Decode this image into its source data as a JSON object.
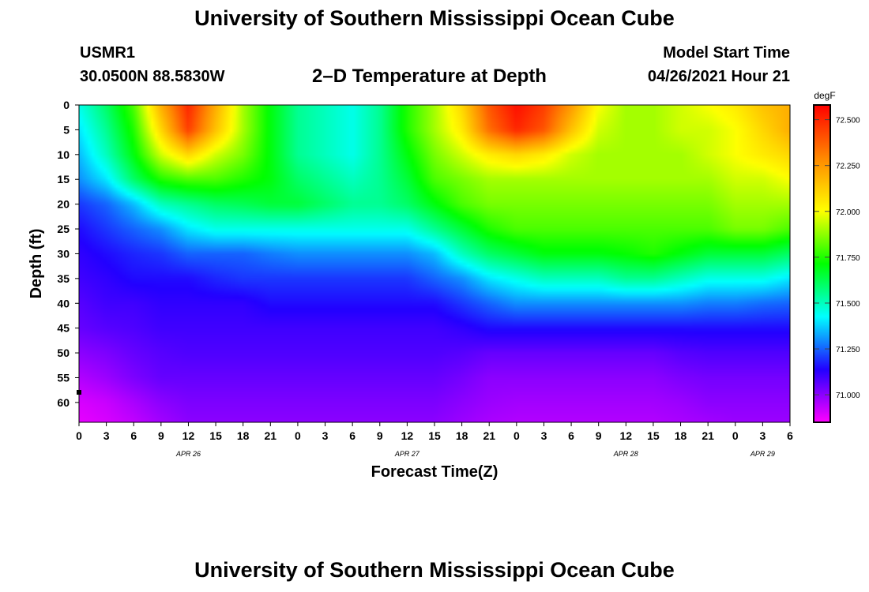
{
  "header": {
    "title_top": "University of Southern Mississippi Ocean Cube",
    "title_bottom": "University of Southern Mississippi Ocean Cube",
    "station_id": "USMR1",
    "station_coords": "30.0500N  88.5830W",
    "plot_title": "2–D Temperature at Depth",
    "model_start_label": "Model Start Time",
    "model_start_time": "04/26/2021 Hour 21"
  },
  "colors": {
    "palette": [
      "#ff00ff",
      "#2200ff",
      "#00ffff",
      "#00ff00",
      "#ffff00",
      "#ff8800",
      "#ff0000"
    ]
  },
  "chart_data": {
    "type": "heatmap",
    "title": "2–D Temperature at Depth",
    "xlabel": "Forecast Time(Z)",
    "ylabel": "Depth (ft)",
    "x_ticks": [
      "0",
      "3",
      "6",
      "9",
      "12",
      "15",
      "18",
      "21",
      "0",
      "3",
      "6",
      "9",
      "12",
      "15",
      "18",
      "21",
      "0",
      "3",
      "6",
      "9",
      "12",
      "15",
      "18",
      "21",
      "0",
      "3",
      "6"
    ],
    "date_labels": [
      {
        "label": "APR 26",
        "at_hour": 12
      },
      {
        "label": "APR 27",
        "at_hour": 36
      },
      {
        "label": "APR 28",
        "at_hour": 60
      },
      {
        "label": "APR 29",
        "at_hour": 75
      }
    ],
    "xlim": [
      0,
      78
    ],
    "y_ticks": [
      0,
      5,
      10,
      15,
      20,
      25,
      30,
      35,
      40,
      45,
      50,
      55,
      60
    ],
    "ylim": [
      0,
      64
    ],
    "colorbar": {
      "unit": "degF",
      "ticks": [
        "72.500",
        "72.250",
        "72.000",
        "71.750",
        "71.500",
        "71.250",
        "71.000"
      ],
      "range": [
        70.85,
        72.58
      ]
    },
    "field": {
      "depth_ft": [
        0,
        5,
        10,
        15,
        20,
        25,
        30,
        35,
        40,
        45,
        50,
        55,
        60,
        64
      ],
      "hour": [
        0,
        3,
        6,
        9,
        12,
        15,
        18,
        21,
        24,
        27,
        30,
        33,
        36,
        39,
        42,
        45,
        48,
        51,
        54,
        57,
        60,
        63,
        66,
        69,
        72,
        75,
        78
      ],
      "temp_degF": [
        [
          71.45,
          71.6,
          71.8,
          72.2,
          72.5,
          72.2,
          71.9,
          71.7,
          71.55,
          71.5,
          71.45,
          71.55,
          71.75,
          71.9,
          72.1,
          72.4,
          72.55,
          72.45,
          72.25,
          72.0,
          71.9,
          71.9,
          71.95,
          72.0,
          72.05,
          72.15,
          72.2
        ],
        [
          71.4,
          71.55,
          71.75,
          72.1,
          72.45,
          72.15,
          71.9,
          71.7,
          71.55,
          71.5,
          71.45,
          71.55,
          71.75,
          71.9,
          72.05,
          72.35,
          72.5,
          72.4,
          72.15,
          71.95,
          71.9,
          71.9,
          71.95,
          71.95,
          72.0,
          72.1,
          72.2
        ],
        [
          71.35,
          71.5,
          71.7,
          71.95,
          72.1,
          71.95,
          71.85,
          71.7,
          71.55,
          71.5,
          71.45,
          71.55,
          71.7,
          71.85,
          71.95,
          72.05,
          72.1,
          72.05,
          71.95,
          71.9,
          71.9,
          71.9,
          71.9,
          71.95,
          72.0,
          72.05,
          72.1
        ],
        [
          71.3,
          71.4,
          71.6,
          71.75,
          71.8,
          71.8,
          71.75,
          71.7,
          71.6,
          71.55,
          71.5,
          71.55,
          71.65,
          71.8,
          71.85,
          71.9,
          71.9,
          71.9,
          71.9,
          71.9,
          71.9,
          71.9,
          71.9,
          71.9,
          71.95,
          71.95,
          72.0
        ],
        [
          71.2,
          71.25,
          71.35,
          71.5,
          71.55,
          71.6,
          71.62,
          71.65,
          71.65,
          71.6,
          71.55,
          71.55,
          71.6,
          71.7,
          71.8,
          71.85,
          71.85,
          71.85,
          71.85,
          71.85,
          71.85,
          71.85,
          71.85,
          71.85,
          71.9,
          71.9,
          71.9
        ],
        [
          71.15,
          71.2,
          71.25,
          71.3,
          71.4,
          71.45,
          71.45,
          71.45,
          71.45,
          71.45,
          71.45,
          71.45,
          71.45,
          71.55,
          71.65,
          71.75,
          71.8,
          71.8,
          71.8,
          71.8,
          71.8,
          71.8,
          71.8,
          71.8,
          71.85,
          71.85,
          71.8
        ],
        [
          71.12,
          71.15,
          71.18,
          71.2,
          71.25,
          71.25,
          71.25,
          71.28,
          71.3,
          71.3,
          71.3,
          71.3,
          71.3,
          71.35,
          71.5,
          71.6,
          71.65,
          71.7,
          71.7,
          71.7,
          71.72,
          71.75,
          71.7,
          71.65,
          71.65,
          71.65,
          71.6
        ],
        [
          71.1,
          71.12,
          71.15,
          71.15,
          71.15,
          71.18,
          71.2,
          71.2,
          71.2,
          71.2,
          71.2,
          71.2,
          71.2,
          71.25,
          71.3,
          71.4,
          71.45,
          71.5,
          71.5,
          71.5,
          71.55,
          71.55,
          71.5,
          71.45,
          71.45,
          71.45,
          71.4
        ],
        [
          71.07,
          71.1,
          71.1,
          71.12,
          71.12,
          71.12,
          71.12,
          71.15,
          71.15,
          71.15,
          71.15,
          71.15,
          71.15,
          71.15,
          71.2,
          71.25,
          71.3,
          71.3,
          71.3,
          71.3,
          71.3,
          71.3,
          71.3,
          71.28,
          71.28,
          71.26,
          71.25
        ],
        [
          71.05,
          71.07,
          71.08,
          71.1,
          71.1,
          71.1,
          71.1,
          71.1,
          71.1,
          71.1,
          71.1,
          71.1,
          71.1,
          71.1,
          71.12,
          71.15,
          71.15,
          71.15,
          71.15,
          71.15,
          71.15,
          71.15,
          71.15,
          71.15,
          71.15,
          71.15,
          71.15
        ],
        [
          71.0,
          71.02,
          71.05,
          71.07,
          71.08,
          71.08,
          71.08,
          71.08,
          71.08,
          71.08,
          71.08,
          71.08,
          71.08,
          71.08,
          71.07,
          71.05,
          71.05,
          71.05,
          71.05,
          71.05,
          71.05,
          71.05,
          71.07,
          71.08,
          71.08,
          71.08,
          71.08
        ],
        [
          70.95,
          70.98,
          71.02,
          71.05,
          71.05,
          71.05,
          71.05,
          71.05,
          71.05,
          71.05,
          71.05,
          71.05,
          71.05,
          71.05,
          71.03,
          71.0,
          71.0,
          71.0,
          71.0,
          71.0,
          71.0,
          71.0,
          71.02,
          71.03,
          71.03,
          71.03,
          71.03
        ],
        [
          70.9,
          70.92,
          70.96,
          71.0,
          71.02,
          71.02,
          71.02,
          71.02,
          71.02,
          71.02,
          71.02,
          71.02,
          71.02,
          71.02,
          71.0,
          70.98,
          70.97,
          70.97,
          70.97,
          70.97,
          70.97,
          70.97,
          70.98,
          71.0,
          71.0,
          71.0,
          71.0
        ],
        [
          70.88,
          70.9,
          70.93,
          70.97,
          71.0,
          71.0,
          71.0,
          71.0,
          71.0,
          71.0,
          71.0,
          71.0,
          71.0,
          71.0,
          70.98,
          70.96,
          70.95,
          70.95,
          70.95,
          70.95,
          70.95,
          70.95,
          70.96,
          70.97,
          70.98,
          70.98,
          70.98
        ]
      ]
    }
  }
}
